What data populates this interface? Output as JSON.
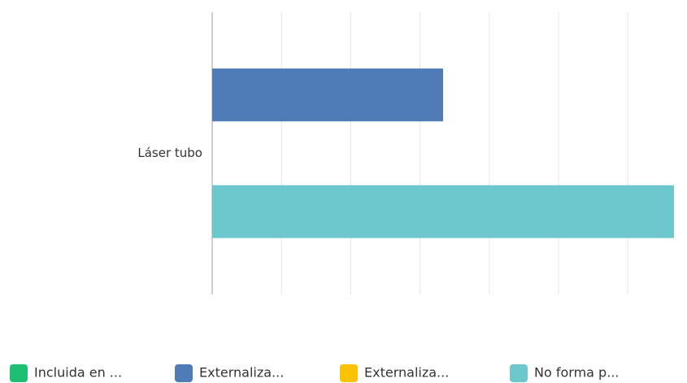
{
  "chart_data": {
    "type": "hbar",
    "categories": [
      "Láser tubo"
    ],
    "series": [
      {
        "name": "Incluida en ...",
        "color": "#1fbf73",
        "values": [
          0
        ]
      },
      {
        "name": "Externaliza...",
        "color": "#4f7bb7",
        "values": [
          33.33
        ]
      },
      {
        "name": "Externaliza...",
        "color": "#fbc200",
        "values": [
          0
        ]
      },
      {
        "name": "No forma p...",
        "color": "#6cc8cc",
        "values": [
          66.67
        ]
      }
    ],
    "xlim": [
      0,
      66.67
    ],
    "xticks": [
      0,
      10,
      20,
      30,
      40,
      50,
      60
    ],
    "grid": true,
    "legend": "bottom"
  }
}
